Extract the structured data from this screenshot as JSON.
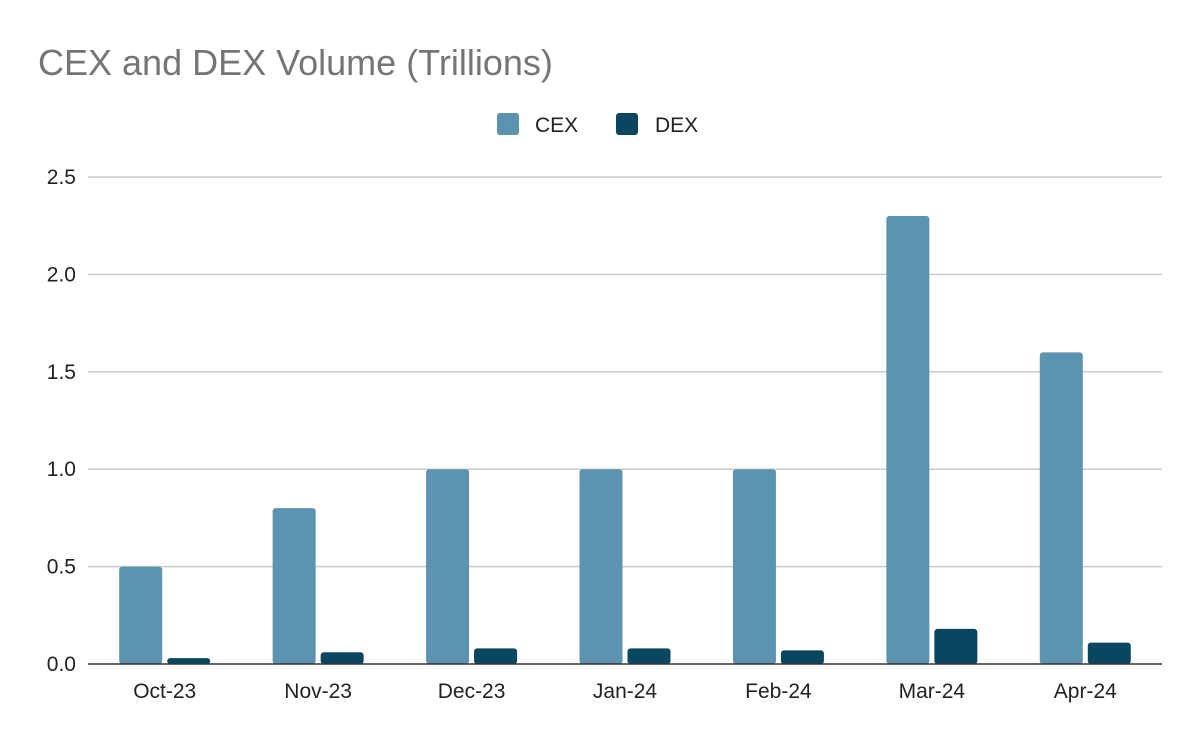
{
  "chart_data": {
    "type": "bar",
    "title": "CEX and DEX Volume (Trillions)",
    "xlabel": "",
    "ylabel": "",
    "categories": [
      "Oct-23",
      "Nov-23",
      "Dec-23",
      "Jan-24",
      "Feb-24",
      "Mar-24",
      "Apr-24"
    ],
    "series": [
      {
        "name": "CEX",
        "color": "#5b93b0",
        "values": [
          0.5,
          0.8,
          1.0,
          1.0,
          1.0,
          2.3,
          1.6
        ]
      },
      {
        "name": "DEX",
        "color": "#0b4660",
        "values": [
          0.03,
          0.06,
          0.08,
          0.08,
          0.07,
          0.18,
          0.11
        ]
      }
    ],
    "ylim": [
      0,
      2.5
    ],
    "yticks": [
      "0.0",
      "0.5",
      "1.0",
      "1.5",
      "2.0",
      "2.5"
    ],
    "grid": true,
    "legend_position": "top-center"
  }
}
